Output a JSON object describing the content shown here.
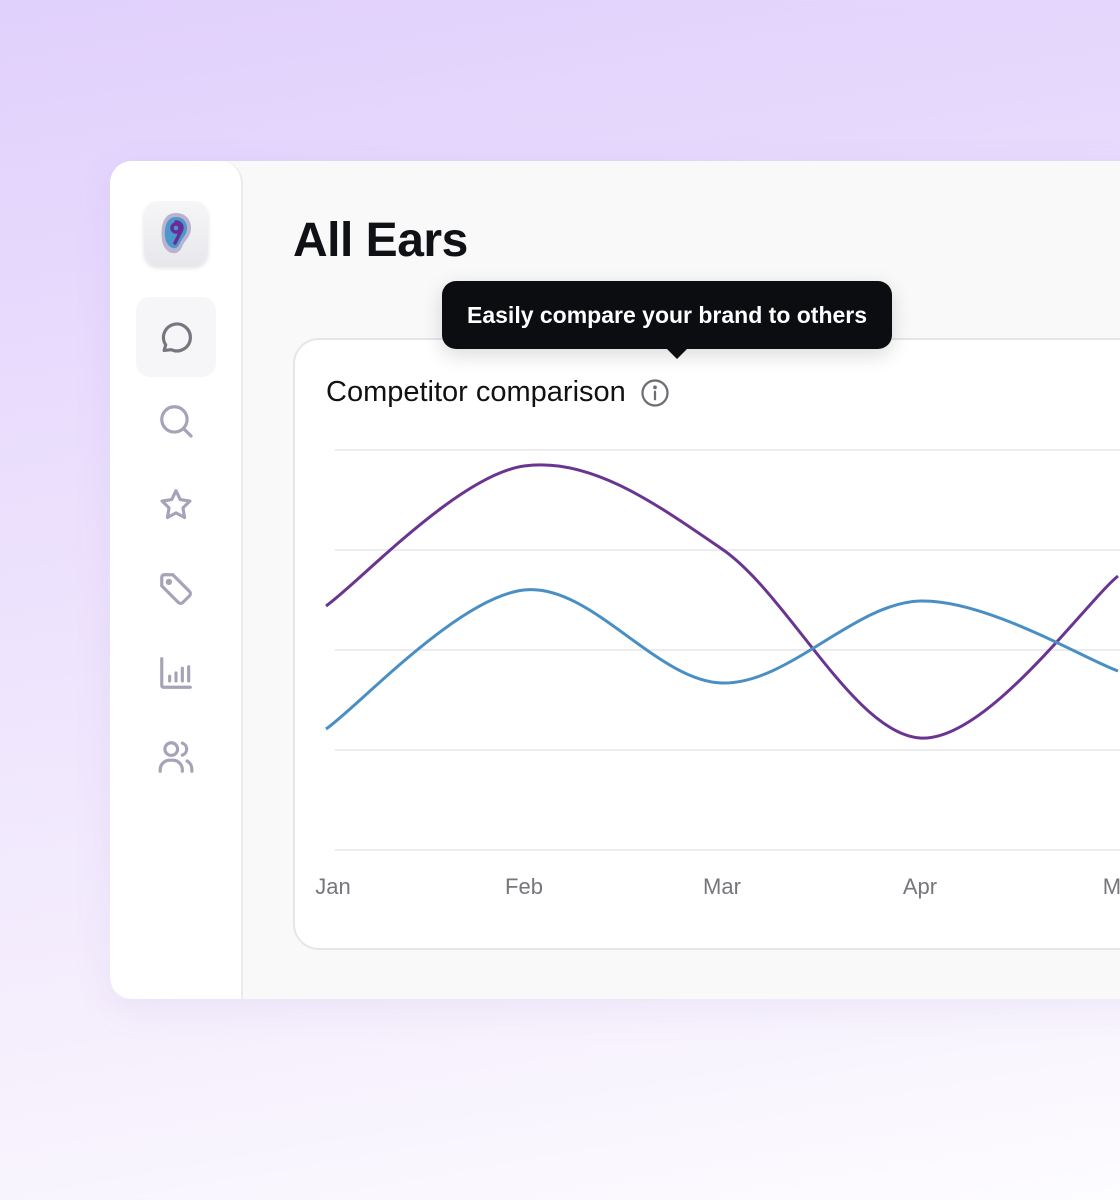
{
  "app": {
    "title": "All Ears",
    "logo_icon": "ear-logo-icon"
  },
  "sidebar": {
    "items": [
      {
        "name": "messages",
        "icon": "chat-bubble-icon",
        "active": true
      },
      {
        "name": "search",
        "icon": "search-icon"
      },
      {
        "name": "favorites",
        "icon": "star-icon"
      },
      {
        "name": "tags",
        "icon": "tag-icon"
      },
      {
        "name": "analytics",
        "icon": "bar-chart-icon"
      },
      {
        "name": "users",
        "icon": "users-icon"
      }
    ]
  },
  "tooltip": {
    "text": "Easily compare your brand to others"
  },
  "card": {
    "title": "Competitor comparison",
    "info_icon": "info-icon"
  },
  "chart_data": {
    "type": "line",
    "title": "Competitor comparison",
    "categories": [
      "Jan",
      "Feb",
      "Mar",
      "Apr",
      "Ma"
    ],
    "ylim": [
      0,
      4
    ],
    "grid": true,
    "series": [
      {
        "name": "series-purple",
        "color": "#6a3590",
        "values": [
          2.44,
          3.84,
          3.01,
          1.12,
          2.74
        ]
      },
      {
        "name": "series-blue",
        "color": "#4a8fc4",
        "values": [
          1.21,
          2.6,
          1.67,
          2.49,
          1.79
        ]
      }
    ]
  }
}
